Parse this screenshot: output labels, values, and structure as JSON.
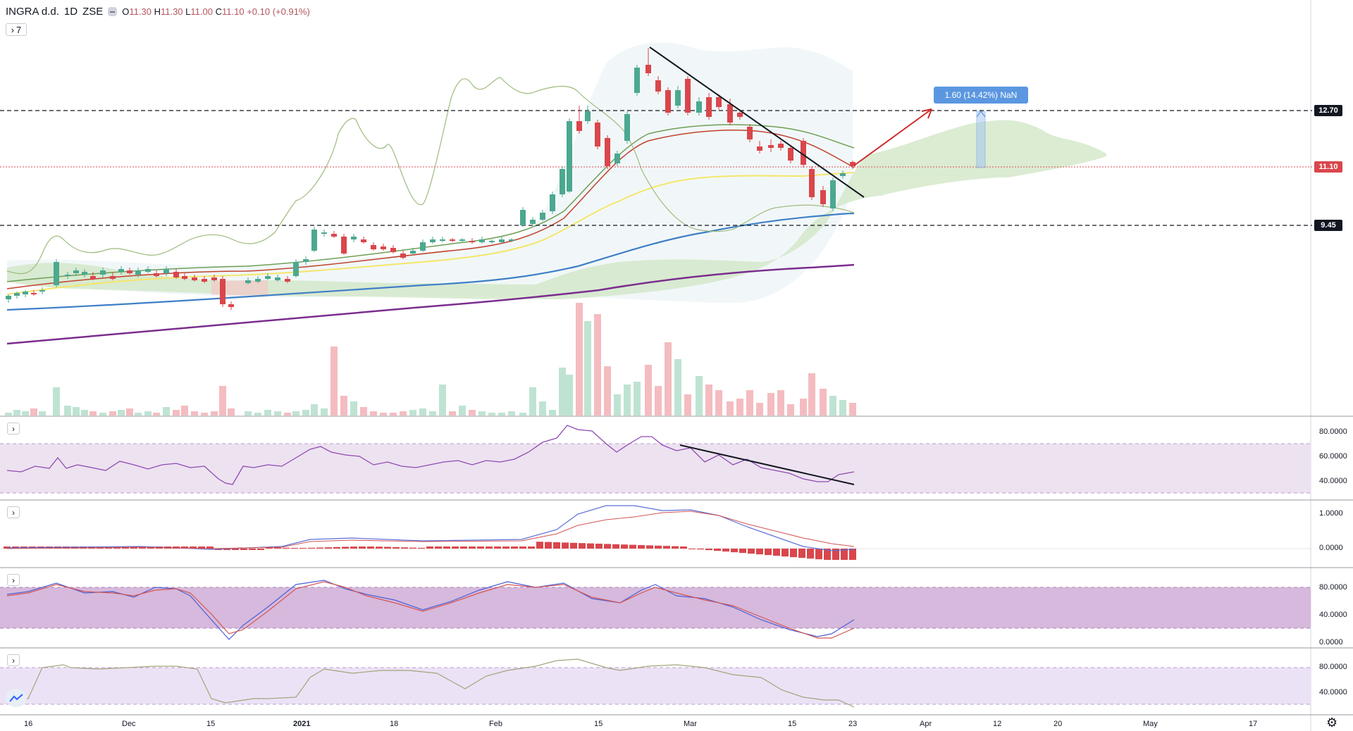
{
  "header": {
    "symbol": "INGRA d.d.",
    "interval": "1D",
    "exchange": "ZSE",
    "ohlc": {
      "o_key": "O",
      "o_val": "11.30",
      "h_key": "H",
      "h_val": "11.30",
      "l_key": "L",
      "l_val": "11.00",
      "c_key": "C",
      "c_val": "11.10",
      "change": "+0.10 (+0.91%)"
    },
    "indicator_count": "7"
  },
  "price_tags": {
    "upper_level": "12.70",
    "last_price": "11.10",
    "lower_level": "9.45"
  },
  "projection_label": "1.60 (14.42%) NaN",
  "time_axis": [
    "16",
    "Dec",
    "15",
    "2021",
    "18",
    "Feb",
    "15",
    "Mar",
    "15",
    "23",
    "Apr",
    "12",
    "20",
    "May",
    "17"
  ],
  "pane_axes": {
    "rsi": [
      "80.0000",
      "60.0000",
      "40.0000"
    ],
    "macd": [
      "1.0000",
      "0.0000"
    ],
    "stoch": [
      "80.0000",
      "40.0000",
      "0.0000"
    ],
    "osc4": [
      "80.0000",
      "40.0000"
    ]
  },
  "icons": [
    "chevron-right-icon",
    "tradingview-logo-icon",
    "gear-icon"
  ],
  "colors": {
    "up": "#4ca890",
    "down": "#d9464c",
    "ma_blue": "#3f7fc7",
    "ma_purple": "#7b2d8e",
    "ma_yellow": "#f4e66a",
    "cloud_green": "#c9e0bd",
    "rsi_band": "#ede2f0",
    "stoch_band": "#d6b9dc",
    "osc_band": "#ece2f6",
    "projection": "#5b97e0",
    "arrow": "#cc2b2b"
  },
  "chart_data": {
    "type": "candlestick",
    "last_close": 11.1,
    "levels": [
      12.7,
      9.45
    ],
    "series": []
  }
}
